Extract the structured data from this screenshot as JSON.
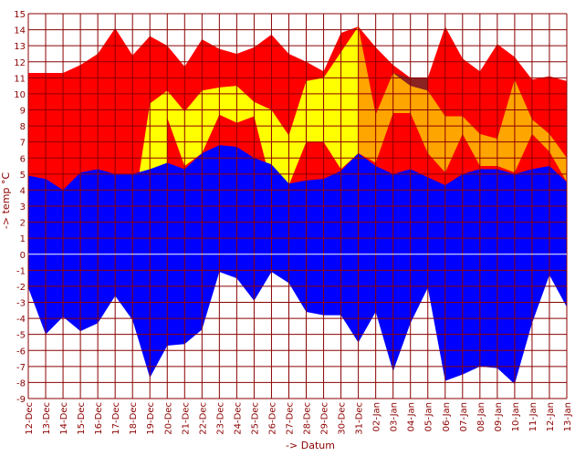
{
  "chart_data": {
    "type": "area",
    "title": "",
    "xlabel": "-> Datum",
    "ylabel": "-> temp °C",
    "ylim": [
      -9,
      15
    ],
    "yticks": [
      -9,
      -8,
      -7,
      -6,
      -5,
      -4,
      -3,
      -2,
      -1,
      0,
      1,
      2,
      3,
      4,
      5,
      6,
      7,
      8,
      9,
      10,
      11,
      12,
      13,
      14,
      15
    ],
    "grid": true,
    "legend": "none",
    "categories": [
      "12-Dec",
      "13-Dec",
      "14-Dec",
      "15-Dec",
      "16-Dec",
      "17-Dec",
      "18-Dec",
      "19-Dec",
      "20-Dec",
      "21-Dec",
      "22-Dec",
      "23-Dec",
      "24-Dec",
      "25-Dec",
      "26-Dec",
      "27-Dec",
      "28-Dec",
      "29-Dec",
      "30-Dec",
      "31-Dec",
      "02-Jan",
      "03-Jan",
      "04-Jan",
      "05-Jan",
      "06-Jan",
      "07-Jan",
      "08-Jan",
      "09-Jan",
      "10-Jan",
      "11-Jan",
      "12-Jan",
      "13-Jan"
    ],
    "series": [
      {
        "color": "#ff0000",
        "values": [
          11.3,
          11.3,
          11.3,
          11.8,
          12.5,
          14.1,
          12.4,
          13.6,
          13.0,
          11.7,
          13.4,
          12.8,
          12.5,
          12.9,
          13.7,
          12.5,
          12.0,
          11.4,
          13.8,
          14.2,
          12.9,
          11.8,
          11.0,
          11.0,
          14.2,
          12.2,
          11.4,
          13.1,
          12.3,
          10.9,
          11.1,
          10.8
        ]
      },
      {
        "color": "#8b2323",
        "values": [
          null,
          null,
          null,
          null,
          null,
          null,
          null,
          null,
          null,
          null,
          null,
          null,
          null,
          null,
          null,
          null,
          null,
          null,
          null,
          null,
          null,
          11.3,
          11.0,
          11.0,
          null,
          null,
          null,
          null,
          null,
          null,
          null,
          null
        ]
      },
      {
        "color": "#ffa500",
        "values": [
          null,
          null,
          null,
          null,
          null,
          null,
          null,
          null,
          null,
          null,
          null,
          null,
          null,
          null,
          null,
          null,
          null,
          null,
          null,
          14.2,
          8.7,
          11.3,
          10.5,
          10.2,
          8.6,
          8.6,
          7.5,
          7.2,
          10.9,
          8.4,
          7.5,
          6.0
        ]
      },
      {
        "color": "#ffff00",
        "values": [
          2.1,
          -0.1,
          0.2,
          4.6,
          4.6,
          2.3,
          2.3,
          9.4,
          10.2,
          8.9,
          10.2,
          10.4,
          10.5,
          9.5,
          9.0,
          7.4,
          10.8,
          11.0,
          12.6,
          14.2,
          null,
          null,
          null,
          null,
          null,
          null,
          null,
          null,
          null,
          null,
          null,
          null
        ]
      },
      {
        "color": "#ff0000",
        "values": [
          null,
          null,
          null,
          null,
          null,
          null,
          null,
          null,
          8.5,
          5.5,
          6.3,
          8.7,
          8.2,
          8.6,
          4.3,
          4.3,
          7.0,
          7.0,
          5.3,
          6.3,
          5.7,
          8.8,
          8.8,
          6.3,
          5.1,
          7.5,
          5.5,
          5.5,
          5.1,
          7.5,
          6.4,
          4.5
        ]
      },
      {
        "color": "#0000ff",
        "values": [
          4.9,
          4.7,
          4.0,
          5.1,
          5.3,
          5.0,
          5.0,
          5.3,
          5.7,
          5.3,
          6.3,
          6.8,
          6.7,
          6.0,
          5.6,
          4.4,
          4.6,
          4.7,
          5.2,
          6.3,
          5.5,
          5.0,
          5.3,
          4.8,
          4.3,
          5.0,
          5.3,
          5.3,
          5.0,
          5.3,
          5.5,
          4.5
        ]
      },
      {
        "color": "#ffff00",
        "values": [
          -2.1,
          -3.4,
          -3.9,
          -1.6,
          -1.6,
          -1.6,
          -3.9,
          null,
          null,
          null,
          null,
          null,
          null,
          null,
          null,
          null,
          null,
          null,
          null,
          null,
          null,
          null,
          null,
          null,
          null,
          null,
          null,
          null,
          null,
          null,
          null,
          null
        ]
      },
      {
        "color": "#0000ff",
        "values": [
          -2.1,
          -5.0,
          -3.9,
          -4.8,
          -4.3,
          -2.6,
          -4.1,
          -7.7,
          -5.7,
          -5.6,
          -4.7,
          -1.1,
          -1.5,
          -2.9,
          -1.1,
          -1.8,
          -3.6,
          -3.8,
          -3.8,
          -5.5,
          -3.6,
          -7.3,
          -4.3,
          -2.1,
          -7.9,
          -7.5,
          -7.0,
          -7.1,
          -8.1,
          -4.3,
          -1.3,
          -3.3
        ]
      }
    ]
  }
}
